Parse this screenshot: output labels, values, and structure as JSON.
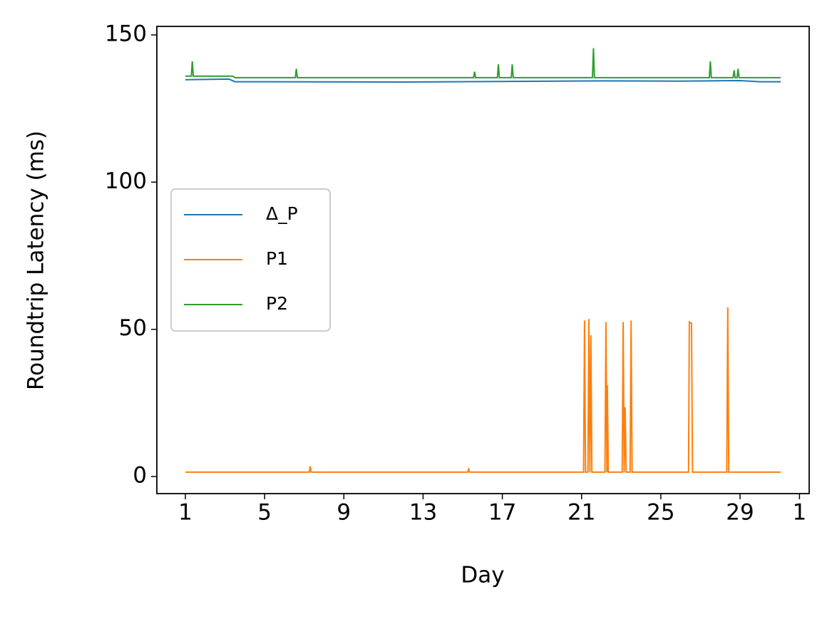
{
  "chart_data": {
    "type": "line",
    "xlabel": "Day",
    "ylabel": "Roundtrip Latency (ms)",
    "xlim": [
      -0.44,
      32.49
    ],
    "ylim": [
      -5.8,
      152.9
    ],
    "xticks": [
      1,
      5,
      9,
      13,
      17,
      21,
      25,
      29,
      {
        "value": 32,
        "label": "1"
      }
    ],
    "yticks": [
      0,
      50,
      100,
      150
    ],
    "legend": "center left",
    "series": [
      {
        "name": "Δ_P",
        "color": "#1f77b4",
        "x": [
          1,
          3.2,
          3.5,
          12,
          22,
          26,
          29,
          30,
          31.05
        ],
        "values": [
          134.8,
          135,
          134.1,
          134,
          134.4,
          134.3,
          134.5,
          134.1,
          134.1
        ]
      },
      {
        "name": "P1",
        "color": "#ff7f0e",
        "x": [
          1,
          7.25,
          7.3,
          7.35,
          15.25,
          15.3,
          15.35,
          21.1,
          21.15,
          21.2,
          21.32,
          21.37,
          21.42,
          21.47,
          21.52,
          22.18,
          22.23,
          22.28,
          22.3,
          22.35,
          23.05,
          23.1,
          23.15,
          23.2,
          23.25,
          23.45,
          23.5,
          23.55,
          26.4,
          26.44,
          26.55,
          26.6,
          28.33,
          28.38,
          28.43,
          31.05
        ],
        "values": [
          1.5,
          1.5,
          3.5,
          1.5,
          1.5,
          2.5,
          1.5,
          1.5,
          53,
          1.5,
          1.5,
          53.5,
          1.5,
          48,
          1.5,
          1.5,
          52.5,
          1.5,
          31,
          1.5,
          1.5,
          52.5,
          1.5,
          23.5,
          1.5,
          1.5,
          53,
          1.5,
          1.5,
          52.5,
          52,
          1.5,
          1.5,
          57.5,
          1.5,
          1.5
        ]
      },
      {
        "name": "P2",
        "color": "#2ca02c",
        "x": [
          1,
          1.3,
          1.35,
          1.4,
          3.4,
          3.5,
          6.55,
          6.6,
          6.65,
          15.55,
          15.6,
          15.65,
          16.75,
          16.8,
          16.85,
          17.45,
          17.5,
          17.55,
          21.55,
          21.6,
          21.65,
          27.45,
          27.5,
          27.55,
          28.65,
          28.7,
          28.75,
          28.85,
          28.9,
          28.95,
          31.05
        ],
        "values": [
          136,
          136,
          141,
          136,
          136,
          135.5,
          135.5,
          138.5,
          135.5,
          135.5,
          137.5,
          135.5,
          135.5,
          140,
          135.5,
          135.5,
          140,
          135.5,
          135.5,
          145.5,
          135.5,
          135.5,
          141,
          135.5,
          135.5,
          138,
          135.5,
          135.5,
          138.5,
          135.5,
          135.5
        ]
      }
    ]
  }
}
